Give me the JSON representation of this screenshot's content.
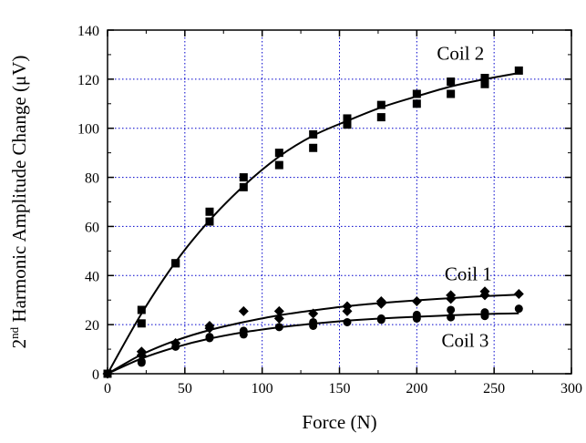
{
  "chart_data": {
    "type": "scatter",
    "xlabel": "Force (N)",
    "ylabel": {
      "prefix": "2",
      "superscript": "nd",
      "rest": " Harmonic Amplitude Change (μV)"
    },
    "xlim": [
      0,
      300
    ],
    "ylim": [
      0,
      140
    ],
    "xticks": [
      0,
      50,
      100,
      150,
      200,
      250,
      300
    ],
    "yticks": [
      0,
      20,
      40,
      60,
      80,
      100,
      120,
      140
    ],
    "grid": true,
    "grid_style": "dotted",
    "colors": {
      "axis": "#000000",
      "grid": "#0000cc",
      "marks": "#000000"
    },
    "series": [
      {
        "name": "Coil 2",
        "marker": "square",
        "x": [
          0,
          22,
          22,
          44,
          44,
          66,
          66,
          88,
          88,
          111,
          111,
          133,
          133,
          155,
          155,
          177,
          177,
          200,
          200,
          222,
          222,
          244,
          244,
          266
        ],
        "y": [
          0,
          26,
          20.5,
          45,
          45,
          66,
          62,
          80,
          76,
          90,
          85,
          97.5,
          92,
          104,
          101.5,
          109.5,
          104.5,
          114,
          110,
          119,
          114,
          120.5,
          118,
          123.5
        ],
        "fit": {
          "x": [
            0,
            22,
            44,
            66,
            88,
            111,
            133,
            155,
            177,
            200,
            222,
            244,
            266
          ],
          "y": [
            0,
            24.5,
            45.5,
            62.5,
            76.5,
            88.5,
            97,
            103,
            108.5,
            113,
            117,
            120,
            122.5
          ]
        }
      },
      {
        "name": "Coil 1",
        "marker": "diamond",
        "x": [
          0,
          22,
          22,
          44,
          66,
          66,
          88,
          111,
          111,
          133,
          155,
          155,
          177,
          177,
          200,
          222,
          222,
          244,
          244,
          266
        ],
        "y": [
          0,
          9,
          7.5,
          12.5,
          19.5,
          18.5,
          25.5,
          25.5,
          22.5,
          24.5,
          27.5,
          25.5,
          29.5,
          28.5,
          29.5,
          32,
          30.5,
          33.5,
          32,
          32.5
        ],
        "fit": {
          "x": [
            0,
            22,
            44,
            66,
            88,
            111,
            133,
            155,
            177,
            200,
            222,
            244,
            266
          ],
          "y": [
            0,
            7.8,
            13.5,
            17.8,
            21,
            23.8,
            25.8,
            27.5,
            28.8,
            29.9,
            30.8,
            31.6,
            32.2
          ]
        }
      },
      {
        "name": "Coil 3",
        "marker": "circle",
        "x": [
          0,
          22,
          22,
          44,
          66,
          66,
          88,
          88,
          111,
          133,
          133,
          155,
          177,
          177,
          200,
          200,
          222,
          222,
          244,
          244,
          266
        ],
        "y": [
          0,
          5,
          4.5,
          11,
          15,
          14.5,
          17.5,
          16,
          19,
          21,
          19.5,
          21,
          22.5,
          22,
          24,
          22.5,
          26,
          23,
          25,
          23.5,
          26.5
        ],
        "fit": {
          "x": [
            0,
            22,
            44,
            66,
            88,
            111,
            133,
            155,
            177,
            200,
            222,
            244,
            266
          ],
          "y": [
            0,
            6.2,
            10.8,
            14.3,
            16.9,
            18.9,
            20.4,
            21.6,
            22.5,
            23.2,
            23.8,
            24.3,
            24.6
          ]
        }
      }
    ]
  }
}
